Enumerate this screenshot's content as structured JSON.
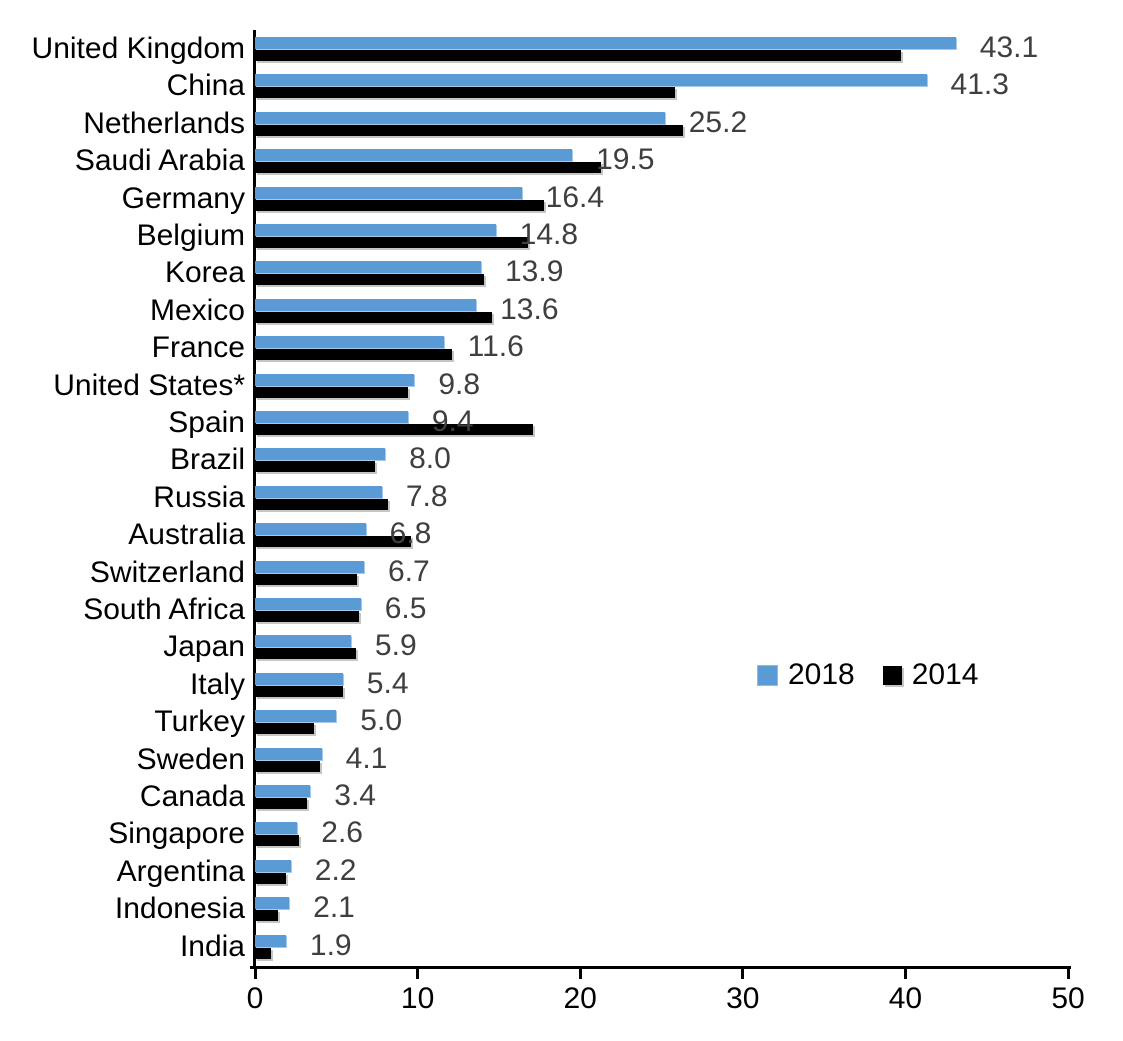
{
  "page": {
    "background": "#FFFFFF"
  },
  "chart_data": {
    "type": "bar",
    "orientation": "horizontal",
    "title": "",
    "xlabel": "",
    "ylabel": "",
    "xlim": [
      0,
      50
    ],
    "x_ticks": [
      0,
      10,
      20,
      30,
      40,
      50
    ],
    "grid": false,
    "legend_position": "center-right",
    "categories": [
      "United Kingdom",
      "China",
      "Netherlands",
      "Saudi Arabia",
      "Germany",
      "Belgium",
      "Korea",
      "Mexico",
      "France",
      "United States*",
      "Spain",
      "Brazil",
      "Russia",
      "Australia",
      "Switzerland",
      "South Africa",
      "Japan",
      "Italy",
      "Turkey",
      "Sweden",
      "Canada",
      "Singapore",
      "Argentina",
      "Indonesia",
      "India"
    ],
    "series": [
      {
        "name": "2018",
        "color": "#5B9BD5",
        "values": [
          43.1,
          41.3,
          25.2,
          19.5,
          16.4,
          14.8,
          13.9,
          13.6,
          11.6,
          9.8,
          9.4,
          8.0,
          7.8,
          6.8,
          6.7,
          6.5,
          5.9,
          5.4,
          5.0,
          4.1,
          3.4,
          2.6,
          2.2,
          2.1,
          1.9
        ]
      },
      {
        "name": "2014",
        "color": "#000000",
        "values": [
          39.7,
          25.8,
          26.3,
          21.3,
          17.8,
          16.8,
          14.1,
          14.6,
          12.1,
          9.4,
          17.1,
          7.4,
          8.2,
          9.6,
          6.3,
          6.4,
          6.2,
          5.4,
          3.6,
          4.0,
          3.2,
          2.7,
          1.9,
          1.4,
          1.0
        ]
      }
    ],
    "value_labels": [
      "43.1",
      "41.3",
      "25.2",
      "19.5",
      "16.4",
      "14.8",
      "13.9",
      "13.6",
      "11.6",
      "9.8",
      "9.4",
      "8.0",
      "7.8",
      "6.8",
      "6.7",
      "6.5",
      "5.9",
      "5.4",
      "5.0",
      "4.1",
      "3.4",
      "2.6",
      "2.2",
      "2.1",
      "1.9"
    ],
    "value_label_series": "2018",
    "value_label_color": "#3F3F3F",
    "axis_color": "#000000"
  }
}
